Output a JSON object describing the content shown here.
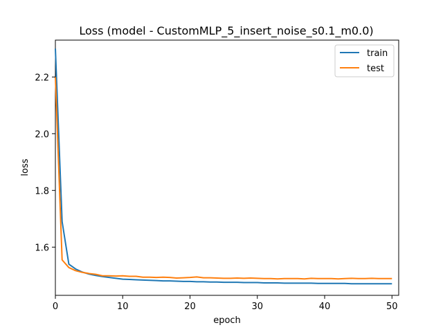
{
  "chart_data": {
    "type": "line",
    "title": "Loss (model - CustomMLP_5_insert_noise_s0.1_m0.0)",
    "xlabel": "epoch",
    "ylabel": "loss",
    "xlim": [
      0,
      51
    ],
    "ylim": [
      1.43,
      2.33
    ],
    "xticks": [
      0,
      10,
      20,
      30,
      40,
      50
    ],
    "yticks": [
      1.6,
      1.8,
      2.0,
      2.2
    ],
    "legend_position": "top-right",
    "grid": false,
    "series": [
      {
        "name": "train",
        "color": "#1f77b4",
        "x": [
          0,
          1,
          2,
          3,
          4,
          5,
          6,
          7,
          8,
          9,
          10,
          11,
          12,
          13,
          14,
          15,
          16,
          17,
          18,
          19,
          20,
          21,
          22,
          23,
          24,
          25,
          26,
          27,
          28,
          29,
          30,
          31,
          32,
          33,
          34,
          35,
          36,
          37,
          38,
          39,
          40,
          41,
          42,
          43,
          44,
          45,
          46,
          47,
          48,
          49,
          50
        ],
        "values": [
          2.3,
          1.69,
          1.54,
          1.523,
          1.512,
          1.505,
          1.5,
          1.496,
          1.493,
          1.49,
          1.487,
          1.486,
          1.485,
          1.484,
          1.483,
          1.482,
          1.481,
          1.481,
          1.48,
          1.479,
          1.479,
          1.478,
          1.478,
          1.477,
          1.477,
          1.476,
          1.476,
          1.476,
          1.475,
          1.475,
          1.475,
          1.474,
          1.474,
          1.474,
          1.473,
          1.473,
          1.473,
          1.473,
          1.473,
          1.472,
          1.472,
          1.472,
          1.472,
          1.472,
          1.471,
          1.471,
          1.471,
          1.471,
          1.471,
          1.471,
          1.471
        ]
      },
      {
        "name": "test",
        "color": "#ff7f0e",
        "x": [
          0,
          1,
          2,
          3,
          4,
          5,
          6,
          7,
          8,
          9,
          10,
          11,
          12,
          13,
          14,
          15,
          16,
          17,
          18,
          19,
          20,
          21,
          22,
          23,
          24,
          25,
          26,
          27,
          28,
          29,
          30,
          31,
          32,
          33,
          34,
          35,
          36,
          37,
          38,
          39,
          40,
          41,
          42,
          43,
          44,
          45,
          46,
          47,
          48,
          49,
          50
        ],
        "values": [
          2.2,
          1.555,
          1.528,
          1.517,
          1.511,
          1.507,
          1.504,
          1.499,
          1.499,
          1.498,
          1.499,
          1.497,
          1.497,
          1.494,
          1.494,
          1.493,
          1.494,
          1.493,
          1.491,
          1.492,
          1.493,
          1.495,
          1.492,
          1.492,
          1.491,
          1.49,
          1.49,
          1.491,
          1.49,
          1.491,
          1.49,
          1.489,
          1.489,
          1.488,
          1.489,
          1.489,
          1.489,
          1.488,
          1.49,
          1.489,
          1.489,
          1.489,
          1.488,
          1.489,
          1.49,
          1.489,
          1.489,
          1.49,
          1.489,
          1.489,
          1.489
        ]
      }
    ]
  }
}
